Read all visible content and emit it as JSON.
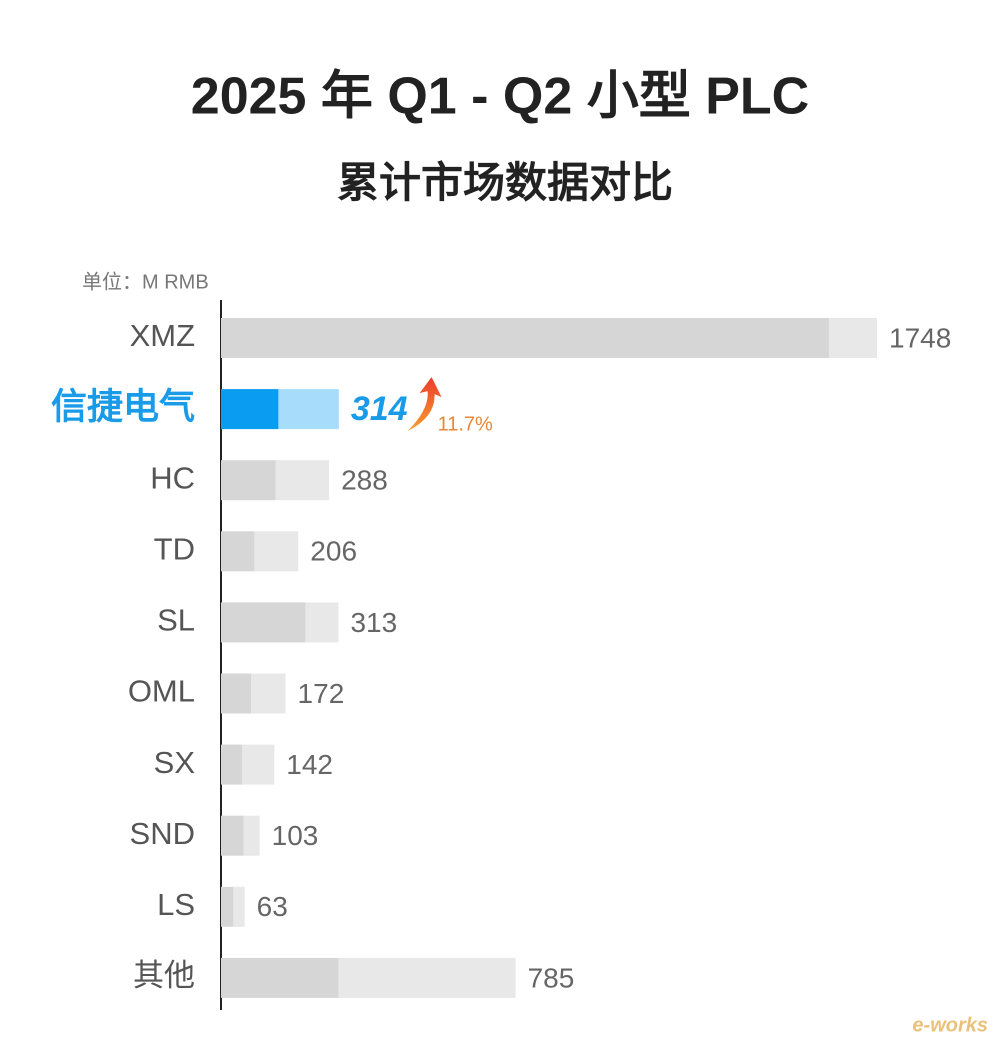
{
  "chart_data": {
    "type": "stacked-barh",
    "title": "2025 年 Q1 - Q2 小型 PLC",
    "subtitle": "累计市场数据对比",
    "unit_label": "单位：M RMB",
    "categories": [
      "XMZ",
      "信捷电气",
      "HC",
      "TD",
      "SL",
      "OML",
      "SX",
      "SND",
      "LS",
      "其他"
    ],
    "series": [
      {
        "color": "#d6d6d6",
        "values": [
          1620,
          153,
          146,
          89,
          225,
          80,
          56,
          60,
          33,
          313
        ]
      },
      {
        "color": "#e8e8e8",
        "values": [
          128,
          161,
          142,
          117,
          88,
          92,
          86,
          43,
          30,
          472
        ]
      }
    ],
    "totals": [
      1748,
      314,
      288,
      206,
      313,
      172,
      142,
      103,
      63,
      785
    ],
    "xlim": [
      0,
      1748
    ],
    "highlight": {
      "index": 1,
      "colors": [
        "#0a9cf0",
        "#a8dcfb"
      ],
      "label_color": "#1a9be8"
    },
    "annotation": {
      "index": 1,
      "text": "11.7%",
      "color": "#e8873a"
    },
    "watermark": "e-works"
  }
}
